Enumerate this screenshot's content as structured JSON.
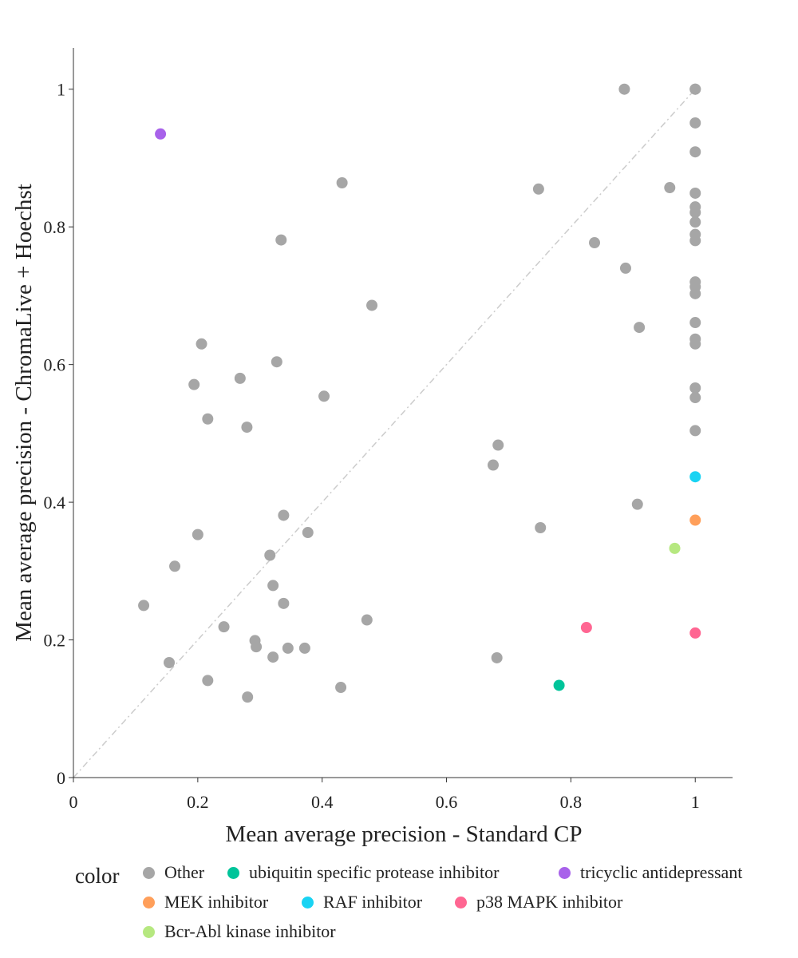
{
  "chart_data": {
    "type": "scatter",
    "xlabel": "Mean average precision - Standard CP",
    "ylabel": "Mean average precision - ChromaLive + Hoechst",
    "xlim": [
      0,
      1.06
    ],
    "ylim": [
      0,
      1.06
    ],
    "x_ticks": [
      "0",
      "0.2",
      "0.4",
      "0.6",
      "0.8",
      "1"
    ],
    "y_ticks": [
      "0",
      "0.2",
      "0.4",
      "0.6",
      "0.8",
      "1"
    ],
    "grid": false,
    "reference_line": "y = x (dash-dot, light gray)",
    "legend_title": "color",
    "legend_position": "bottom",
    "series": [
      {
        "name": "Other",
        "color": "#a6a6a6",
        "points": [
          [
            0.886,
            1.0
          ],
          [
            1.0,
            1.0
          ],
          [
            1.0,
            1.0
          ],
          [
            1.0,
            0.951
          ],
          [
            1.0,
            0.909
          ],
          [
            0.959,
            0.857
          ],
          [
            1.0,
            0.849
          ],
          [
            1.0,
            0.829
          ],
          [
            1.0,
            0.821
          ],
          [
            1.0,
            0.807
          ],
          [
            1.0,
            0.789
          ],
          [
            1.0,
            0.78
          ],
          [
            1.0,
            0.72
          ],
          [
            1.0,
            0.713
          ],
          [
            1.0,
            0.703
          ],
          [
            1.0,
            0.661
          ],
          [
            1.0,
            0.637
          ],
          [
            1.0,
            0.63
          ],
          [
            1.0,
            0.566
          ],
          [
            1.0,
            0.552
          ],
          [
            1.0,
            0.504
          ],
          [
            0.748,
            0.855
          ],
          [
            0.838,
            0.777
          ],
          [
            0.888,
            0.74
          ],
          [
            0.91,
            0.654
          ],
          [
            0.683,
            0.483
          ],
          [
            0.675,
            0.454
          ],
          [
            0.907,
            0.397
          ],
          [
            0.751,
            0.363
          ],
          [
            0.681,
            0.174
          ],
          [
            0.432,
            0.864
          ],
          [
            0.334,
            0.781
          ],
          [
            0.48,
            0.686
          ],
          [
            0.206,
            0.63
          ],
          [
            0.327,
            0.604
          ],
          [
            0.194,
            0.571
          ],
          [
            0.268,
            0.58
          ],
          [
            0.403,
            0.554
          ],
          [
            0.216,
            0.521
          ],
          [
            0.279,
            0.509
          ],
          [
            0.338,
            0.381
          ],
          [
            0.2,
            0.353
          ],
          [
            0.377,
            0.356
          ],
          [
            0.163,
            0.307
          ],
          [
            0.316,
            0.323
          ],
          [
            0.321,
            0.279
          ],
          [
            0.113,
            0.25
          ],
          [
            0.338,
            0.253
          ],
          [
            0.242,
            0.219
          ],
          [
            0.472,
            0.229
          ],
          [
            0.292,
            0.199
          ],
          [
            0.294,
            0.19
          ],
          [
            0.345,
            0.188
          ],
          [
            0.372,
            0.188
          ],
          [
            0.321,
            0.175
          ],
          [
            0.154,
            0.167
          ],
          [
            0.216,
            0.141
          ],
          [
            0.43,
            0.131
          ],
          [
            0.28,
            0.117
          ]
        ]
      },
      {
        "name": "ubiquitin specific protease inhibitor",
        "color": "#00c49a",
        "points": [
          [
            0.781,
            0.134
          ]
        ]
      },
      {
        "name": "tricyclic antidepressant",
        "color": "#a862ea",
        "points": [
          [
            0.14,
            0.935
          ]
        ]
      },
      {
        "name": "MEK inhibitor",
        "color": "#ff9f5a",
        "points": [
          [
            1.0,
            0.374
          ]
        ]
      },
      {
        "name": "RAF inhibitor",
        "color": "#19d3f3",
        "points": [
          [
            1.0,
            0.437
          ]
        ]
      },
      {
        "name": "p38 MAPK inhibitor",
        "color": "#ff6692",
        "points": [
          [
            0.825,
            0.218
          ],
          [
            1.0,
            0.21
          ]
        ]
      },
      {
        "name": "Bcr-Abl kinase inhibitor",
        "color": "#b6e880",
        "points": [
          [
            0.967,
            0.333
          ]
        ]
      }
    ]
  }
}
